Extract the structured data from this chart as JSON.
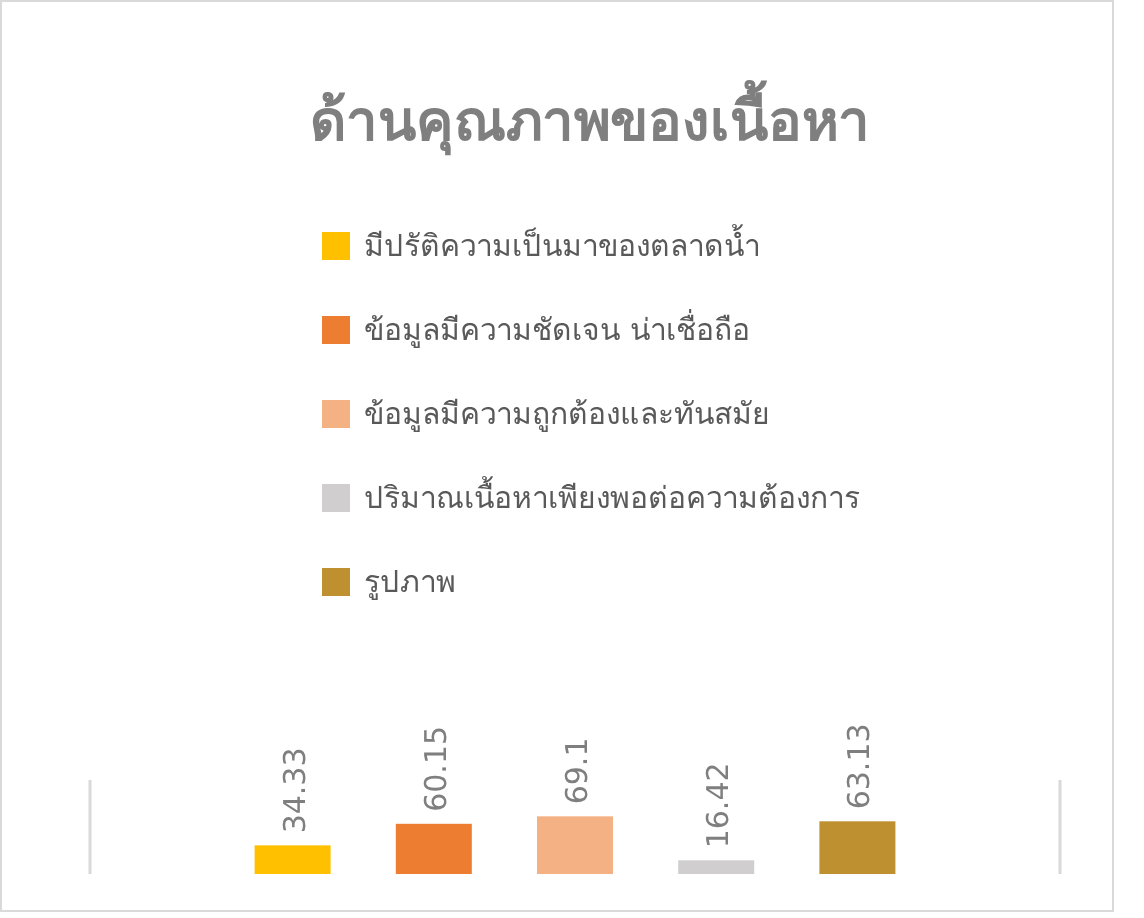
{
  "chart_data": {
    "type": "bar",
    "title": "ด้านคุณภาพของเนื้อหา",
    "categories": [
      null,
      null,
      null,
      null,
      null
    ],
    "stacked": true,
    "series": [
      {
        "name": "มีปรัติความเป็นมาของตลาดน้ำ",
        "color": "#ffc000",
        "values": [
          34.33,
          null,
          null,
          null,
          null
        ]
      },
      {
        "name": "ข้อมูลมีความชัดเจน น่าเชื่อถือ",
        "color": "#ed7d31",
        "values": [
          null,
          60.15,
          null,
          null,
          null
        ]
      },
      {
        "name": "ข้อมูลมีความถูกต้องและทันสมัย",
        "color": "#f4b183",
        "values": [
          null,
          null,
          69.1,
          null,
          null
        ]
      },
      {
        "name": "ปริมาณเนื้อหาเพียงพอต่อความต้องการ",
        "color": "#d0cece",
        "values": [
          null,
          null,
          null,
          16.42,
          null
        ]
      },
      {
        "name": "รูปภาพ",
        "color": "#bf9030",
        "values": [
          null,
          null,
          null,
          null,
          63.13
        ]
      }
    ],
    "data_labels": true,
    "legend": "top"
  }
}
